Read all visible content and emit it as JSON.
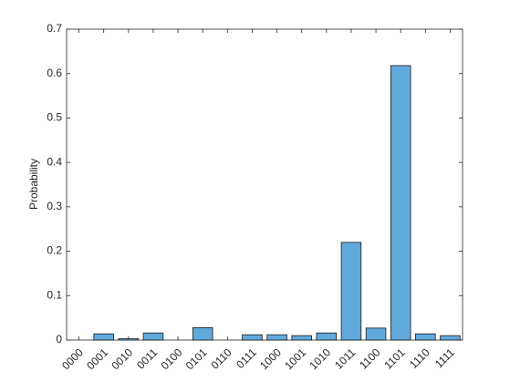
{
  "chart_data": {
    "type": "bar",
    "y_label": "Probability",
    "categories": [
      "0000",
      "0001",
      "0010",
      "0011",
      "0100",
      "0101",
      "0110",
      "0111",
      "1000",
      "1001",
      "1010",
      "1011",
      "1100",
      "1101",
      "1110",
      "1111"
    ],
    "values": [
      0,
      0.014,
      0.003,
      0.016,
      0,
      0.028,
      0,
      0.012,
      0.012,
      0.01,
      0.016,
      0.22,
      0.027,
      0.618,
      0.014,
      0.01
    ],
    "color": "#62a9db",
    "ylim": [
      0,
      0.7
    ],
    "yticks": [
      0,
      0.1,
      0.2,
      0.3,
      0.4,
      0.5,
      0.6,
      0.7
    ],
    "grid": false
  }
}
